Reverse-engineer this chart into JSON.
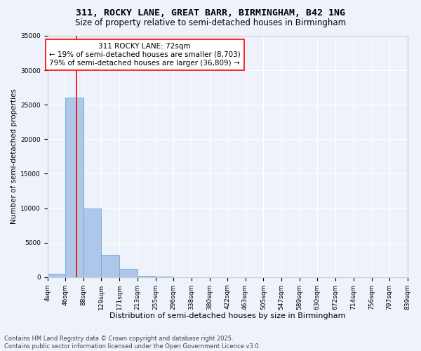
{
  "title": "311, ROCKY LANE, GREAT BARR, BIRMINGHAM, B42 1NG",
  "subtitle": "Size of property relative to semi-detached houses in Birmingham",
  "xlabel": "Distribution of semi-detached houses by size in Birmingham",
  "ylabel": "Number of semi-detached properties",
  "footer_line1": "Contains HM Land Registry data © Crown copyright and database right 2025.",
  "footer_line2": "Contains public sector information licensed under the Open Government Licence v3.0.",
  "annotation_title": "311 ROCKY LANE: 72sqm",
  "annotation_line1": "← 19% of semi-detached houses are smaller (8,703)",
  "annotation_line2": "79% of semi-detached houses are larger (36,809) →",
  "property_size": 72,
  "bar_edges": [
    4,
    46,
    88,
    129,
    171,
    213,
    255,
    296,
    338,
    380,
    422,
    463,
    505,
    547,
    589,
    630,
    672,
    714,
    756,
    797,
    839
  ],
  "bar_heights": [
    500,
    26000,
    10000,
    3200,
    1200,
    200,
    50,
    0,
    0,
    0,
    0,
    0,
    0,
    0,
    0,
    0,
    0,
    0,
    0,
    0
  ],
  "bar_color": "#aec6e8",
  "bar_edge_color": "#6aabe0",
  "vline_x": 72,
  "vline_color": "red",
  "vline_lw": 1.2,
  "ylim": [
    0,
    35000
  ],
  "yticks": [
    0,
    5000,
    10000,
    15000,
    20000,
    25000,
    30000,
    35000
  ],
  "background_color": "#eef2fa",
  "plot_bg_color": "#eef2fa",
  "grid_color": "#ffffff",
  "grid_lw": 0.8,
  "annotation_box_color": "white",
  "annotation_box_edge": "red",
  "title_fontsize": 9.5,
  "subtitle_fontsize": 8.5,
  "xlabel_fontsize": 8,
  "ylabel_fontsize": 7.5,
  "tick_fontsize": 6.5,
  "annotation_fontsize": 7.5,
  "footer_fontsize": 6
}
